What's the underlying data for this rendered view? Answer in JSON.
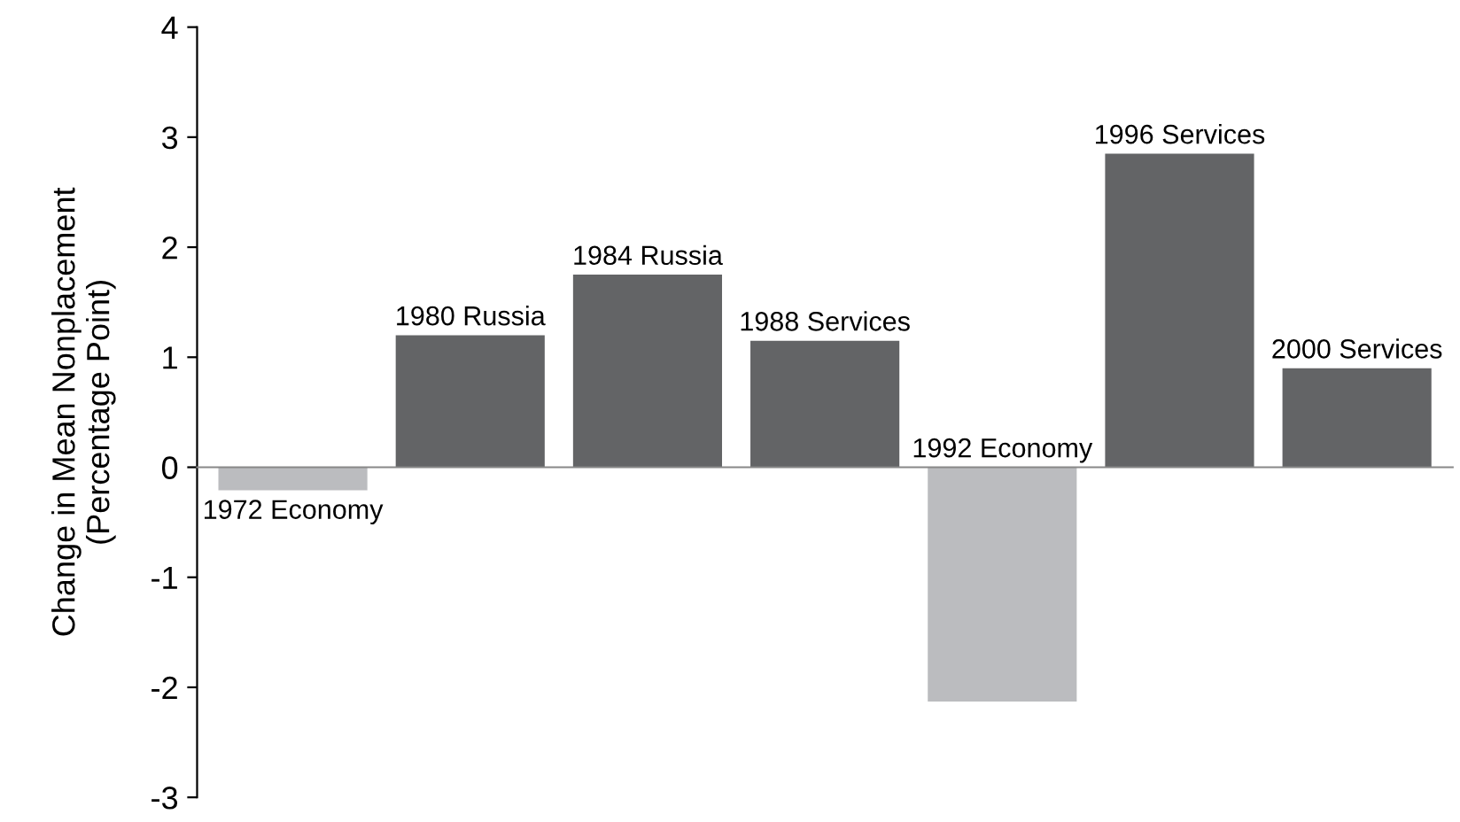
{
  "chart_data": {
    "type": "bar",
    "ylabel": "Change in Mean Nonplacement\n(Percentage Point)",
    "categories": [
      "1972 Economy",
      "1980 Russia",
      "1984 Russia",
      "1988 Services",
      "1992 Economy",
      "1996 Services",
      "2000 Services"
    ],
    "values": [
      -0.21,
      1.2,
      1.75,
      1.15,
      -2.13,
      2.85,
      0.9
    ],
    "colors": [
      "#bbbcbf",
      "#636466",
      "#636466",
      "#636466",
      "#bbbcbf",
      "#636466",
      "#636466"
    ],
    "ylim": [
      -3,
      4
    ],
    "yticks": [
      -3,
      -2,
      -1,
      0,
      1,
      2,
      3,
      4
    ]
  }
}
